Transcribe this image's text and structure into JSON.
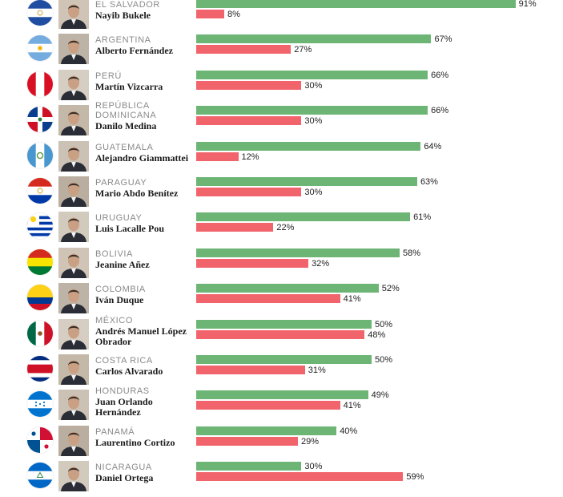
{
  "chart_data": {
    "type": "bar",
    "orientation": "horizontal",
    "xlim": [
      0,
      100
    ],
    "grid": false,
    "legend": "none",
    "colors": {
      "approve": "#6db575",
      "disapprove": "#f2646c"
    },
    "rows": [
      {
        "country": "EL SALVADOR",
        "leader": "Nayib Bukele",
        "approve": 91,
        "disapprove": 8,
        "approve_label": "91%",
        "disapprove_label": "8%",
        "flag_icon": "el-salvador-flag-icon"
      },
      {
        "country": "ARGENTINA",
        "leader": "Alberto Fernández",
        "approve": 67,
        "disapprove": 27,
        "approve_label": "67%",
        "disapprove_label": "27%",
        "flag_icon": "argentina-flag-icon"
      },
      {
        "country": "PERÚ",
        "leader": "Martín Vizcarra",
        "approve": 66,
        "disapprove": 30,
        "approve_label": "66%",
        "disapprove_label": "30%",
        "flag_icon": "peru-flag-icon"
      },
      {
        "country": "REPÚBLICA DOMINICANA",
        "leader": "Danilo Medina",
        "approve": 66,
        "disapprove": 30,
        "approve_label": "66%",
        "disapprove_label": "30%",
        "flag_icon": "dominican-republic-flag-icon"
      },
      {
        "country": "GUATEMALA",
        "leader": "Alejandro Giammattei",
        "approve": 64,
        "disapprove": 12,
        "approve_label": "64%",
        "disapprove_label": "12%",
        "flag_icon": "guatemala-flag-icon"
      },
      {
        "country": "PARAGUAY",
        "leader": "Mario Abdo Benítez",
        "approve": 63,
        "disapprove": 30,
        "approve_label": "63%",
        "disapprove_label": "30%",
        "flag_icon": "paraguay-flag-icon"
      },
      {
        "country": "URUGUAY",
        "leader": "Luis Lacalle Pou",
        "approve": 61,
        "disapprove": 22,
        "approve_label": "61%",
        "disapprove_label": "22%",
        "flag_icon": "uruguay-flag-icon"
      },
      {
        "country": "BOLIVIA",
        "leader": "Jeanine Añez",
        "approve": 58,
        "disapprove": 32,
        "approve_label": "58%",
        "disapprove_label": "32%",
        "flag_icon": "bolivia-flag-icon"
      },
      {
        "country": "COLOMBIA",
        "leader": "Iván Duque",
        "approve": 52,
        "disapprove": 41,
        "approve_label": "52%",
        "disapprove_label": "41%",
        "flag_icon": "colombia-flag-icon"
      },
      {
        "country": "MÉXICO",
        "leader": "Andrés Manuel López Obrador",
        "approve": 50,
        "disapprove": 48,
        "approve_label": "50%",
        "disapprove_label": "48%",
        "flag_icon": "mexico-flag-icon"
      },
      {
        "country": "COSTA RICA",
        "leader": "Carlos Alvarado",
        "approve": 50,
        "disapprove": 31,
        "approve_label": "50%",
        "disapprove_label": "31%",
        "flag_icon": "costa-rica-flag-icon"
      },
      {
        "country": "HONDURAS",
        "leader": "Juan Orlando Hernández",
        "approve": 49,
        "disapprove": 41,
        "approve_label": "49%",
        "disapprove_label": "41%",
        "flag_icon": "honduras-flag-icon"
      },
      {
        "country": "PANAMÁ",
        "leader": "Laurentino Cortizo",
        "approve": 40,
        "disapprove": 29,
        "approve_label": "40%",
        "disapprove_label": "29%",
        "flag_icon": "panama-flag-icon"
      },
      {
        "country": "NICARAGUA",
        "leader": "Daniel Ortega",
        "approve": 30,
        "disapprove": 59,
        "approve_label": "30%",
        "disapprove_label": "59%",
        "flag_icon": "nicaragua-flag-icon"
      }
    ]
  }
}
